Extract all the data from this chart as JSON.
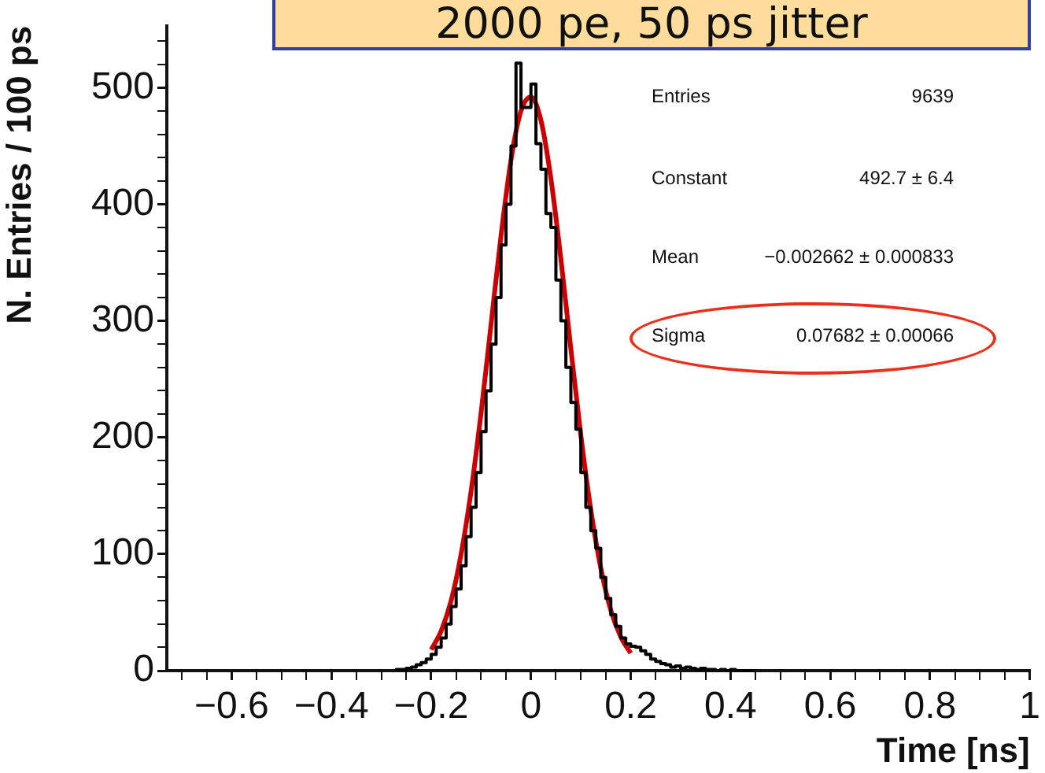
{
  "chart_data": {
    "type": "histogram",
    "title": "2000 pe, 50 ps jitter",
    "xlabel": "Time [ns]",
    "ylabel": "N. Entries / 100 ps",
    "series": [
      {
        "type": "histogram",
        "color": "#000000",
        "bins": [
          -0.27,
          -0.26,
          -0.25,
          -0.24,
          -0.23,
          -0.22,
          -0.21,
          -0.2,
          -0.19,
          -0.18,
          -0.17,
          -0.16,
          -0.15,
          -0.14,
          -0.13,
          -0.12,
          -0.11,
          -0.1,
          -0.09,
          -0.08,
          -0.07,
          -0.06,
          -0.05,
          -0.04,
          -0.03,
          -0.02,
          -0.01,
          0,
          0.01,
          0.02,
          0.03,
          0.04,
          0.05,
          0.06,
          0.07,
          0.08,
          0.09,
          0.1,
          0.11,
          0.12,
          0.13,
          0.14,
          0.15,
          0.16,
          0.17,
          0.18,
          0.19,
          0.2,
          0.21,
          0.22,
          0.23,
          0.24,
          0.25,
          0.26,
          0.27,
          0.28,
          0.29,
          0.3,
          0.31,
          0.32,
          0.33,
          0.34,
          0.35,
          0.36,
          0.37,
          0.38,
          0.39,
          0.4,
          0.41,
          0.42,
          0.43,
          0.44,
          0.45
        ],
        "values": [
          1,
          1,
          2,
          3,
          5,
          7,
          10,
          14,
          20,
          28,
          40,
          55,
          70,
          90,
          115,
          140,
          170,
          205,
          240,
          280,
          320,
          365,
          400,
          450,
          521,
          483,
          483,
          503,
          452,
          430,
          392,
          380,
          335,
          300,
          260,
          230,
          207,
          170,
          140,
          120,
          105,
          80,
          62,
          48,
          38,
          28,
          23,
          21,
          20,
          17,
          14,
          10,
          8,
          6,
          5,
          3,
          4,
          2,
          3,
          2,
          1,
          2,
          1,
          1,
          0,
          1,
          0,
          1,
          0,
          0,
          0,
          0
        ]
      },
      {
        "type": "line",
        "color": "#cc0000",
        "marker": "none",
        "x": [
          -0.2,
          -0.18,
          -0.16,
          -0.14,
          -0.12,
          -0.1,
          -0.08,
          -0.06,
          -0.04,
          -0.02,
          0,
          0.02,
          0.04,
          0.06,
          0.08,
          0.1,
          0.12,
          0.14,
          0.16,
          0.18,
          0.2
        ],
        "values": [
          18,
          34,
          60,
          100,
          154,
          221,
          297,
          373,
          438,
          480,
          492,
          472,
          422,
          353,
          276,
          202,
          138,
          88,
          52,
          29,
          15
        ]
      }
    ],
    "xlim": [
      -0.73,
      1
    ],
    "xticks": [
      {
        "value": -0.7,
        "label": null
      },
      {
        "value": -0.65,
        "label": null
      },
      {
        "value": -0.6,
        "label": "−0.6"
      },
      {
        "value": -0.55,
        "label": null
      },
      {
        "value": -0.5,
        "label": null
      },
      {
        "value": -0.45,
        "label": null
      },
      {
        "value": -0.4,
        "label": "−0.4"
      },
      {
        "value": -0.35,
        "label": null
      },
      {
        "value": -0.3,
        "label": null
      },
      {
        "value": -0.25,
        "label": null
      },
      {
        "value": -0.2,
        "label": "−0.2"
      },
      {
        "value": -0.15,
        "label": null
      },
      {
        "value": -0.1,
        "label": null
      },
      {
        "value": -0.05,
        "label": null
      },
      0,
      {
        "value": 0.05,
        "label": null
      },
      {
        "value": 0.1,
        "label": null
      },
      {
        "value": 0.15,
        "label": null
      },
      0.2,
      {
        "value": 0.25,
        "label": null
      },
      {
        "value": 0.3,
        "label": null
      },
      {
        "value": 0.35,
        "label": null
      },
      0.4,
      {
        "value": 0.45,
        "label": null
      },
      {
        "value": 0.5,
        "label": null
      },
      {
        "value": 0.55,
        "label": null
      },
      0.6,
      {
        "value": 0.65,
        "label": null
      },
      {
        "value": 0.7,
        "label": null
      },
      {
        "value": 0.75,
        "label": null
      },
      0.8,
      {
        "value": 0.85,
        "label": null
      },
      {
        "value": 0.9,
        "label": null
      },
      {
        "value": 0.95,
        "label": null
      },
      1
    ],
    "ylim": [
      0,
      553
    ],
    "yticks": [
      0,
      {
        "value": 20,
        "label": null
      },
      {
        "value": 40,
        "label": null
      },
      {
        "value": 60,
        "label": null
      },
      {
        "value": 80,
        "label": null
      },
      100,
      {
        "value": 120,
        "label": null
      },
      {
        "value": 140,
        "label": null
      },
      {
        "value": 160,
        "label": null
      },
      {
        "value": 180,
        "label": null
      },
      200,
      {
        "value": 220,
        "label": null
      },
      {
        "value": 240,
        "label": null
      },
      {
        "value": 260,
        "label": null
      },
      {
        "value": 280,
        "label": null
      },
      300,
      {
        "value": 320,
        "label": null
      },
      {
        "value": 340,
        "label": null
      },
      {
        "value": 360,
        "label": null
      },
      {
        "value": 380,
        "label": null
      },
      400,
      {
        "value": 420,
        "label": null
      },
      {
        "value": 440,
        "label": null
      },
      {
        "value": 460,
        "label": null
      },
      {
        "value": 480,
        "label": null
      },
      500,
      {
        "value": 520,
        "label": null
      },
      {
        "value": 540,
        "label": null
      }
    ],
    "annotations": [
      "Entries",
      "9639",
      "Constant",
      "492.7 ± 6.4",
      "Mean",
      "−0.002662 ± 0.000833",
      "Sigma",
      "0.07682 ± 0.00066"
    ]
  }
}
